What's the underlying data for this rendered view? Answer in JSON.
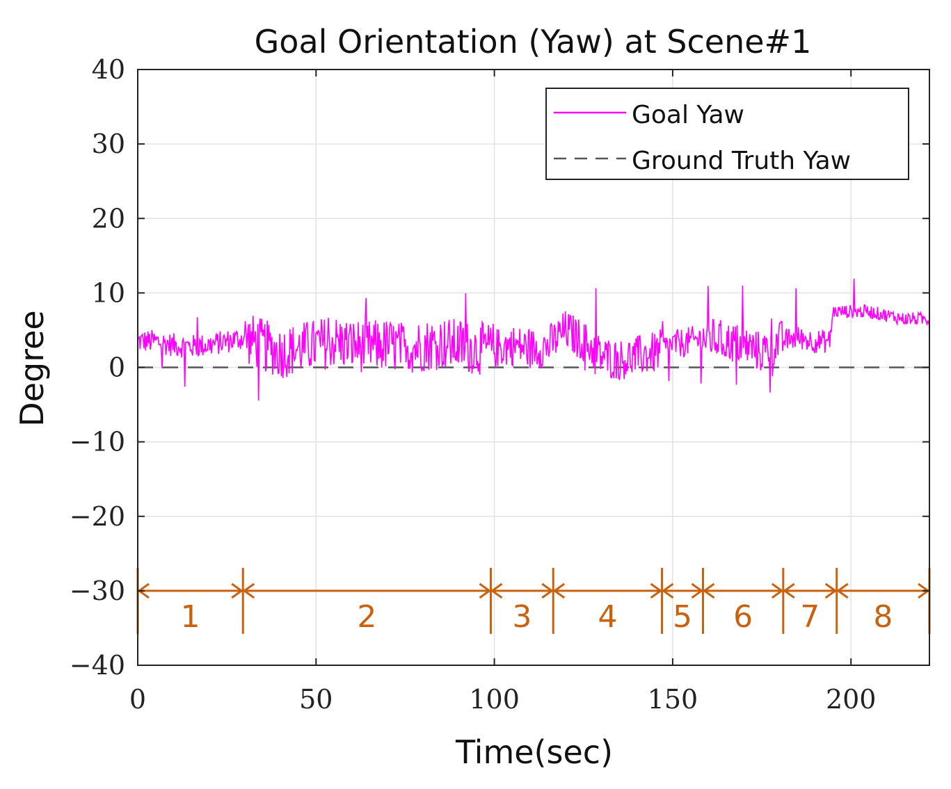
{
  "chart_data": {
    "type": "line",
    "title": "Goal Orientation (Yaw) at Scene#1",
    "xlabel": "Time(sec)",
    "ylabel": "Degree",
    "xlim": [
      0,
      222
    ],
    "ylim": [
      -40,
      40
    ],
    "x_ticks": [
      0,
      50,
      100,
      150,
      200
    ],
    "x_tick_labels": [
      "0",
      "50",
      "100",
      "150",
      "200"
    ],
    "y_ticks": [
      40,
      30,
      20,
      10,
      0,
      -10,
      -20,
      -30,
      -40
    ],
    "y_tick_labels": [
      "40",
      "30",
      "20",
      "10",
      "0",
      "−10",
      "−20",
      "−30",
      "−40"
    ],
    "grid": true,
    "legend_position": "top-right",
    "series": [
      {
        "name": "Goal Yaw",
        "color": "#ff00ff",
        "style": "solid",
        "trend": [
          [
            0,
            3.5
          ],
          [
            5,
            3.5
          ],
          [
            10,
            3.0
          ],
          [
            15,
            2.8
          ],
          [
            20,
            3.0
          ],
          [
            25,
            3.5
          ],
          [
            30,
            4.0
          ],
          [
            35,
            3.0
          ],
          [
            40,
            2.0
          ],
          [
            45,
            2.5
          ],
          [
            50,
            3.0
          ],
          [
            55,
            3.5
          ],
          [
            60,
            3.0
          ],
          [
            65,
            2.8
          ],
          [
            70,
            3.0
          ],
          [
            75,
            2.5
          ],
          [
            80,
            3.0
          ],
          [
            85,
            3.2
          ],
          [
            90,
            3.0
          ],
          [
            95,
            2.5
          ],
          [
            100,
            2.5
          ],
          [
            105,
            3.0
          ],
          [
            110,
            2.5
          ],
          [
            115,
            2.8
          ],
          [
            120,
            5.0
          ],
          [
            125,
            3.5
          ],
          [
            130,
            1.5
          ],
          [
            135,
            1.0
          ],
          [
            140,
            1.5
          ],
          [
            145,
            2.0
          ],
          [
            150,
            3.0
          ],
          [
            155,
            3.5
          ],
          [
            160,
            4.0
          ],
          [
            165,
            3.5
          ],
          [
            170,
            3.0
          ],
          [
            175,
            2.0
          ],
          [
            180,
            3.5
          ],
          [
            185,
            4.0
          ],
          [
            190,
            3.5
          ],
          [
            194,
            3.5
          ],
          [
            195,
            7.5
          ],
          [
            200,
            7.5
          ],
          [
            205,
            7.5
          ],
          [
            210,
            7.0
          ],
          [
            215,
            6.5
          ],
          [
            222,
            6.5
          ]
        ]
      },
      {
        "name": "Ground Truth Yaw",
        "color": "#555555",
        "style": "dashed",
        "x": [
          0,
          222
        ],
        "y": [
          0,
          0
        ]
      }
    ],
    "segments": [
      {
        "label": "1",
        "start": 0,
        "end": 29.5
      },
      {
        "label": "2",
        "start": 29.5,
        "end": 99
      },
      {
        "label": "3",
        "start": 99,
        "end": 116.5
      },
      {
        "label": "4",
        "start": 116.5,
        "end": 147
      },
      {
        "label": "5",
        "start": 147,
        "end": 158.5
      },
      {
        "label": "6",
        "start": 158.5,
        "end": 181
      },
      {
        "label": "7",
        "start": 181,
        "end": 196
      },
      {
        "label": "8",
        "start": 196,
        "end": 222
      }
    ],
    "segments_y": -30,
    "segment_color": "#c8620e"
  }
}
